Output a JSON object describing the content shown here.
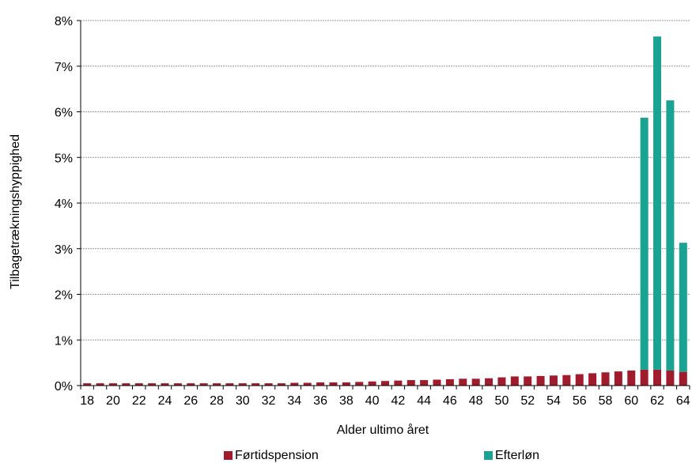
{
  "chart_data": {
    "type": "bar",
    "stacked": true,
    "ylabel": "Tilbagetrækningshyppighed",
    "xlabel": "Alder ultimo året",
    "ylim": [
      0,
      8
    ],
    "yticks": [
      "0%",
      "1%",
      "2%",
      "3%",
      "4%",
      "5%",
      "6%",
      "7%",
      "8%"
    ],
    "x_tick_labels": [
      "18",
      "20",
      "22",
      "24",
      "26",
      "28",
      "30",
      "32",
      "34",
      "36",
      "38",
      "40",
      "42",
      "44",
      "46",
      "48",
      "50",
      "52",
      "54",
      "56",
      "58",
      "60",
      "62",
      "64"
    ],
    "grid": true,
    "legend_position": "bottom",
    "categories": [
      "18",
      "19",
      "20",
      "21",
      "22",
      "23",
      "24",
      "25",
      "26",
      "27",
      "28",
      "29",
      "30",
      "31",
      "32",
      "33",
      "34",
      "35",
      "36",
      "37",
      "38",
      "39",
      "40",
      "41",
      "42",
      "43",
      "44",
      "45",
      "46",
      "47",
      "48",
      "49",
      "50",
      "51",
      "52",
      "53",
      "54",
      "55",
      "56",
      "57",
      "58",
      "59",
      "60",
      "61",
      "62",
      "63",
      "64"
    ],
    "series": [
      {
        "name": "Førtidspension",
        "color": "#a01c2c",
        "values": [
          0.05,
          0.05,
          0.05,
          0.05,
          0.05,
          0.05,
          0.05,
          0.05,
          0.05,
          0.05,
          0.05,
          0.05,
          0.05,
          0.05,
          0.05,
          0.05,
          0.06,
          0.06,
          0.07,
          0.07,
          0.07,
          0.08,
          0.09,
          0.1,
          0.11,
          0.12,
          0.12,
          0.13,
          0.14,
          0.15,
          0.15,
          0.16,
          0.18,
          0.2,
          0.2,
          0.21,
          0.22,
          0.23,
          0.25,
          0.27,
          0.29,
          0.31,
          0.33,
          0.35,
          0.35,
          0.33,
          0.3
        ]
      },
      {
        "name": "Efterløn",
        "color": "#1aa393",
        "values": [
          0,
          0,
          0,
          0,
          0,
          0,
          0,
          0,
          0,
          0,
          0,
          0,
          0,
          0,
          0,
          0,
          0,
          0,
          0,
          0,
          0,
          0,
          0,
          0,
          0,
          0,
          0,
          0,
          0,
          0,
          0,
          0,
          0,
          0,
          0,
          0,
          0,
          0,
          0,
          0,
          0,
          0,
          0,
          5.52,
          7.3,
          5.92,
          2.83
        ]
      }
    ]
  }
}
